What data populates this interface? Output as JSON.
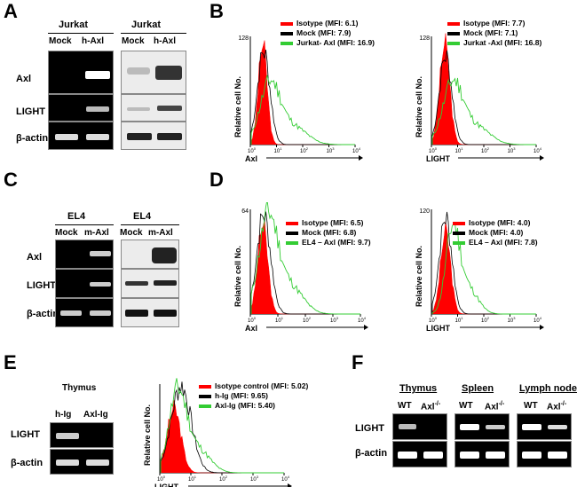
{
  "panels": {
    "A": {
      "label": "A",
      "blots": [
        {
          "title": "Jurkat",
          "lanes": [
            "Mock",
            "h-Axl"
          ]
        },
        {
          "title": "Jurkat",
          "lanes": [
            "Mock",
            "h-Axl"
          ]
        }
      ],
      "rows": [
        "Axl",
        "LIGHT",
        "β-actin"
      ]
    },
    "B": {
      "label": "B",
      "plots": [
        {
          "ymax": "128",
          "ylabel": "Relative cell No.",
          "xlabel": "Axl",
          "legend": [
            "Isotype (MFI: 6.1)",
            "Mock (MFI: 7.9)",
            "Jurkat- Axl (MFI: 16.9)"
          ]
        },
        {
          "ymax": "128",
          "ylabel": "Relative cell No.",
          "xlabel": "LIGHT",
          "legend": [
            "Isotype (MFI: 7.7)",
            "Mock (MFI: 7.1)",
            "Jurkat -Axl (MFI: 16.8)"
          ]
        }
      ]
    },
    "C": {
      "label": "C",
      "blots": [
        {
          "title": "EL4",
          "lanes": [
            "Mock",
            "m-Axl"
          ]
        },
        {
          "title": "EL4",
          "lanes": [
            "Mock",
            "m-Axl"
          ]
        }
      ],
      "rows": [
        "Axl",
        "LIGHT",
        "β-actin"
      ]
    },
    "D": {
      "label": "D",
      "plots": [
        {
          "ymax": "64",
          "ylabel": "Relative cell No.",
          "xlabel": "Axl",
          "legend": [
            "Isotype (MFI: 6.5)",
            "Mock (MFI: 6.8)",
            "EL4 – Axl (MFI: 9.7)"
          ]
        },
        {
          "ymax": "120",
          "ylabel": "Relative cell No.",
          "xlabel": "LIGHT",
          "legend": [
            "Isotype (MFI: 4.0)",
            "Mock (MFI: 4.0)",
            "EL4 – Axl (MFI: 7.8)"
          ]
        }
      ]
    },
    "E": {
      "label": "E",
      "blot": {
        "title": "Thymus",
        "lanes": [
          "h-Ig",
          "Axl-Ig"
        ],
        "rows": [
          "LIGHT",
          "β-actin"
        ]
      },
      "plot": {
        "ylabel": "Relative cell No.",
        "xlabel": "LIGHT",
        "legend": [
          "Isotype control (MFI: 5.02)",
          "h-Ig (MFI: 9.65)",
          "Axl-Ig (MFI: 5.40)"
        ]
      }
    },
    "F": {
      "label": "F",
      "tissues": [
        "Thymus",
        "Spleen",
        "Lymph node"
      ],
      "lanes": [
        "WT",
        "Axl",
        "-/-"
      ],
      "rows": [
        "LIGHT",
        "β-actin"
      ]
    }
  },
  "colors": {
    "isotype": "#ff0000",
    "mock": "#000000",
    "treated": "#33cc33"
  }
}
